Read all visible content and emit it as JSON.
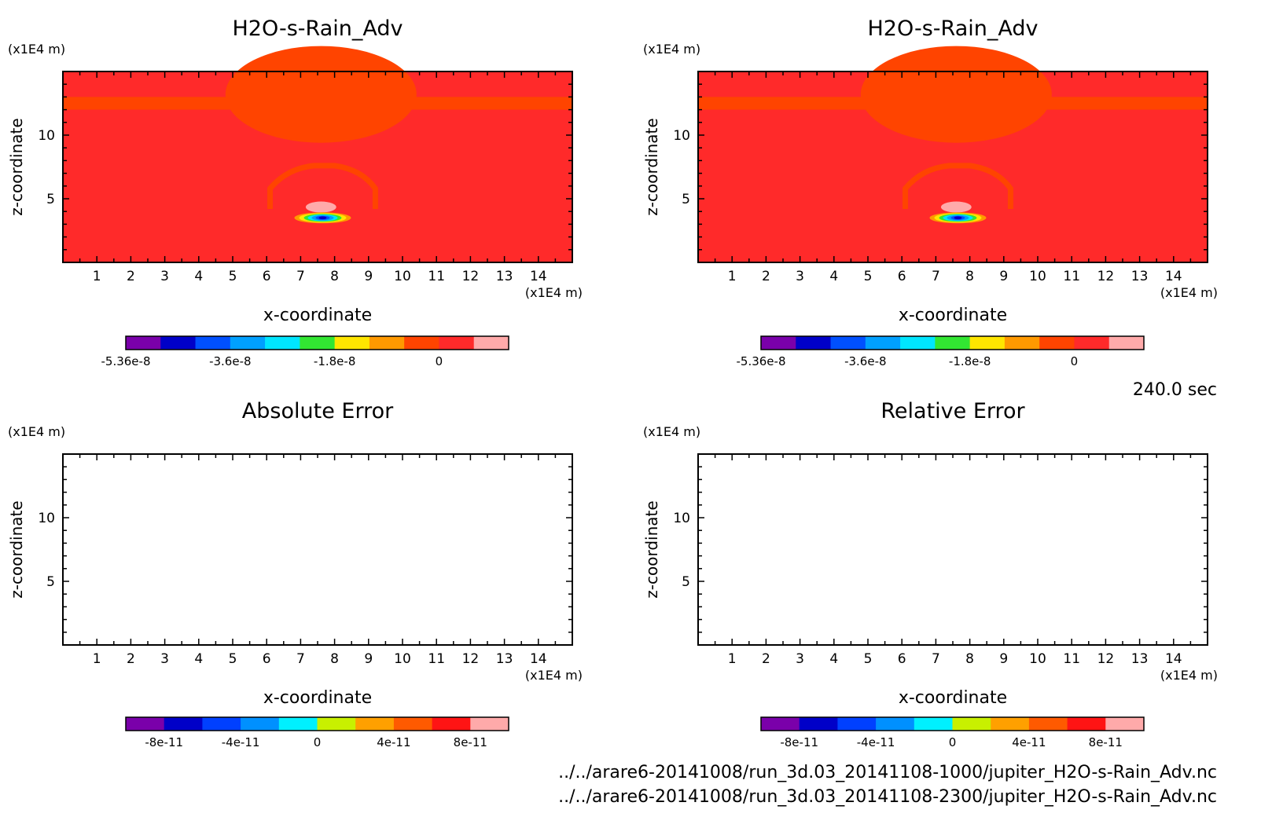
{
  "time_label": "240.0 sec",
  "files": [
    "../../arare6-20141008/run_3d.03_20141108-1000/jupiter_H2O-s-Rain_Adv.nc",
    "../../arare6-20141008/run_3d.03_20141108-2300/jupiter_H2O-s-Rain_Adv.nc"
  ],
  "colors": {
    "background_field": "#ff2a2a",
    "upper_band": "#ff4400",
    "lower_pink": "#ffaaaa"
  },
  "chart_data": [
    {
      "type": "heatmap",
      "title": "H2O-s-Rain_Adv",
      "xlabel": "x-coordinate",
      "ylabel": "z-coordinate",
      "x_unit": "(x1E4 m)",
      "y_unit": "(x1E4 m)",
      "xlim": [
        0,
        15
      ],
      "ylim": [
        0,
        15
      ],
      "x_ticks": [
        "1",
        "2",
        "3",
        "4",
        "5",
        "6",
        "7",
        "8",
        "9",
        "10",
        "11",
        "12",
        "13",
        "14"
      ],
      "y_ticks": [
        "5",
        "10"
      ],
      "colorbar": {
        "labels": [
          "-5.36e-8",
          "-3.6e-8",
          "-1.8e-8",
          "0"
        ],
        "colors": [
          "#7a00aa",
          "#0000c8",
          "#0050ff",
          "#00a0ff",
          "#00e6ff",
          "#32e632",
          "#ffe600",
          "#ff9900",
          "#ff4400",
          "#ff2a2a",
          "#ffaaaa"
        ]
      },
      "filled": true
    },
    {
      "type": "heatmap",
      "title": "H2O-s-Rain_Adv",
      "xlabel": "x-coordinate",
      "ylabel": "z-coordinate",
      "x_unit": "(x1E4 m)",
      "y_unit": "(x1E4 m)",
      "xlim": [
        0,
        15
      ],
      "ylim": [
        0,
        15
      ],
      "x_ticks": [
        "1",
        "2",
        "3",
        "4",
        "5",
        "6",
        "7",
        "8",
        "9",
        "10",
        "11",
        "12",
        "13",
        "14"
      ],
      "y_ticks": [
        "5",
        "10"
      ],
      "colorbar": {
        "labels": [
          "-5.36e-8",
          "-3.6e-8",
          "-1.8e-8",
          "0"
        ],
        "colors": [
          "#7a00aa",
          "#0000c8",
          "#0050ff",
          "#00a0ff",
          "#00e6ff",
          "#32e632",
          "#ffe600",
          "#ff9900",
          "#ff4400",
          "#ff2a2a",
          "#ffaaaa"
        ]
      },
      "filled": true
    },
    {
      "type": "heatmap",
      "title": "Absolute Error",
      "xlabel": "x-coordinate",
      "ylabel": "z-coordinate",
      "x_unit": "(x1E4 m)",
      "y_unit": "(x1E4 m)",
      "xlim": [
        0,
        15
      ],
      "ylim": [
        0,
        15
      ],
      "x_ticks": [
        "1",
        "2",
        "3",
        "4",
        "5",
        "6",
        "7",
        "8",
        "9",
        "10",
        "11",
        "12",
        "13",
        "14"
      ],
      "y_ticks": [
        "5",
        "10"
      ],
      "colorbar": {
        "labels": [
          "-8e-11",
          "-4e-11",
          "0",
          "4e-11",
          "8e-11"
        ],
        "colors": [
          "#7a00aa",
          "#0000c8",
          "#0040ff",
          "#0090ff",
          "#00f0ff",
          "#c8f000",
          "#ffa000",
          "#ff5a00",
          "#ff1414",
          "#ffaaaa"
        ]
      },
      "filled": false
    },
    {
      "type": "heatmap",
      "title": "Relative Error",
      "xlabel": "x-coordinate",
      "ylabel": "z-coordinate",
      "x_unit": "(x1E4 m)",
      "y_unit": "(x1E4 m)",
      "xlim": [
        0,
        15
      ],
      "ylim": [
        0,
        15
      ],
      "x_ticks": [
        "1",
        "2",
        "3",
        "4",
        "5",
        "6",
        "7",
        "8",
        "9",
        "10",
        "11",
        "12",
        "13",
        "14"
      ],
      "y_ticks": [
        "5",
        "10"
      ],
      "colorbar": {
        "labels": [
          "-8e-11",
          "-4e-11",
          "0",
          "4e-11",
          "8e-11"
        ],
        "colors": [
          "#7a00aa",
          "#0000c8",
          "#0040ff",
          "#0090ff",
          "#00f0ff",
          "#c8f000",
          "#ffa000",
          "#ff5a00",
          "#ff1414",
          "#ffaaaa"
        ]
      },
      "filled": false
    }
  ]
}
